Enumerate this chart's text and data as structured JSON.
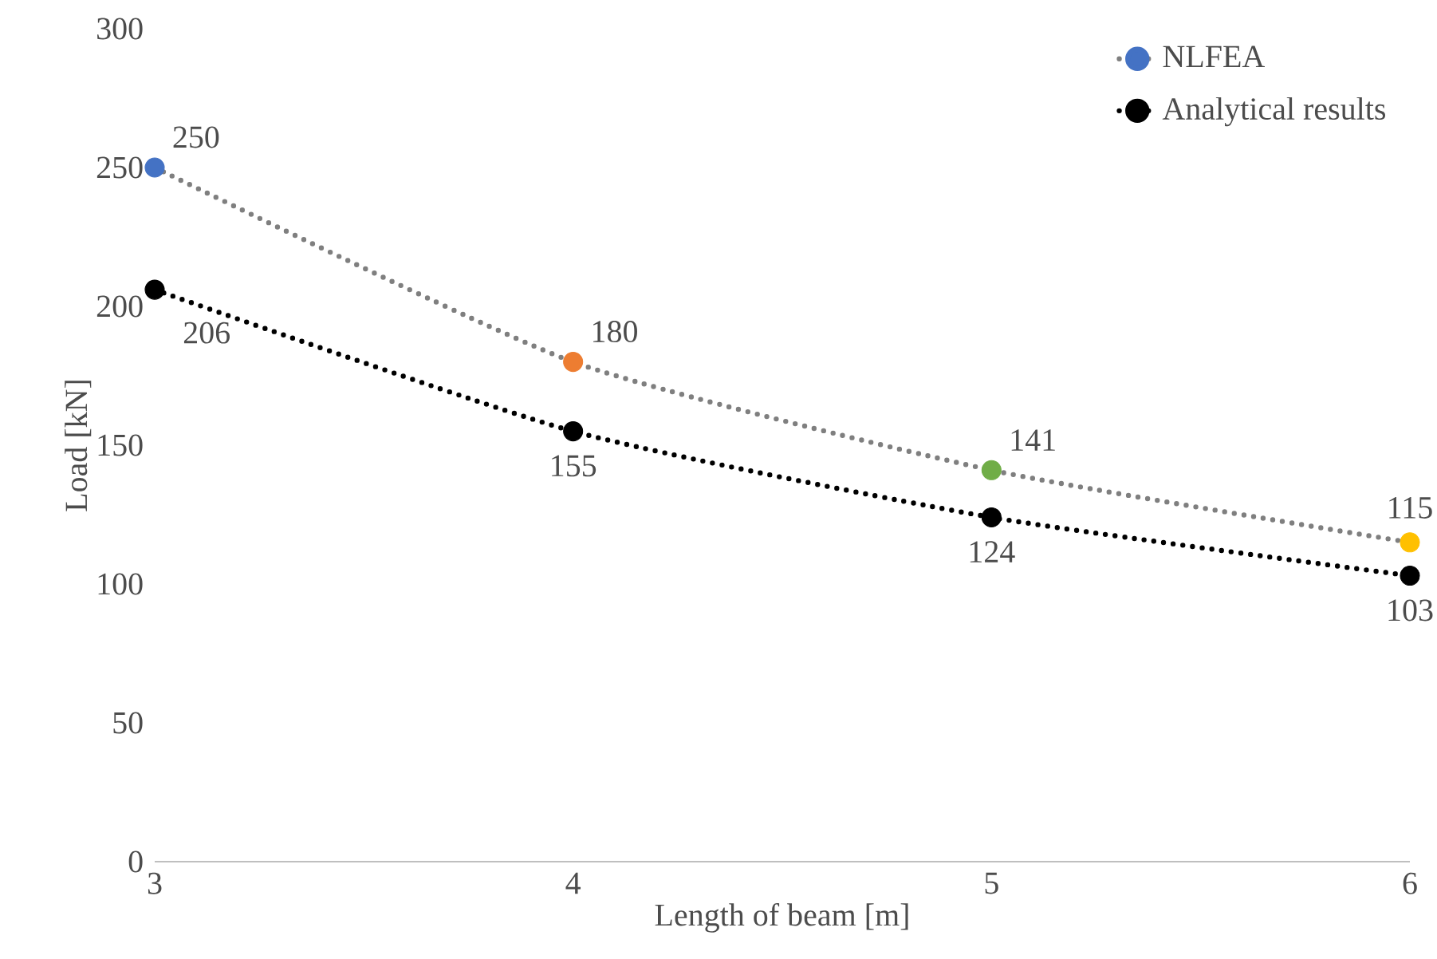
{
  "chart_data": {
    "type": "line",
    "xlabel": "Length of beam [m]",
    "ylabel": "Load [kN]",
    "x": [
      3,
      4,
      5,
      6
    ],
    "xlim": [
      3,
      6
    ],
    "xticks": [
      3,
      4,
      5,
      6
    ],
    "ylim": [
      0,
      300
    ],
    "yticks": [
      0,
      50,
      100,
      150,
      200,
      250,
      300
    ],
    "series": [
      {
        "name": "NLFEA",
        "color": "#7f7f7f",
        "colors": [
          "#4472c4",
          "#ed7d31",
          "#70ad47",
          "#ffc000"
        ],
        "values": [
          250,
          180,
          141,
          115
        ]
      },
      {
        "name": "Analytical results",
        "color": "#000000",
        "values": [
          206,
          155,
          124,
          103
        ]
      }
    ],
    "data_labels": true,
    "legend": "top right",
    "grid": false,
    "marker": "circle",
    "line_style": "dotted"
  }
}
